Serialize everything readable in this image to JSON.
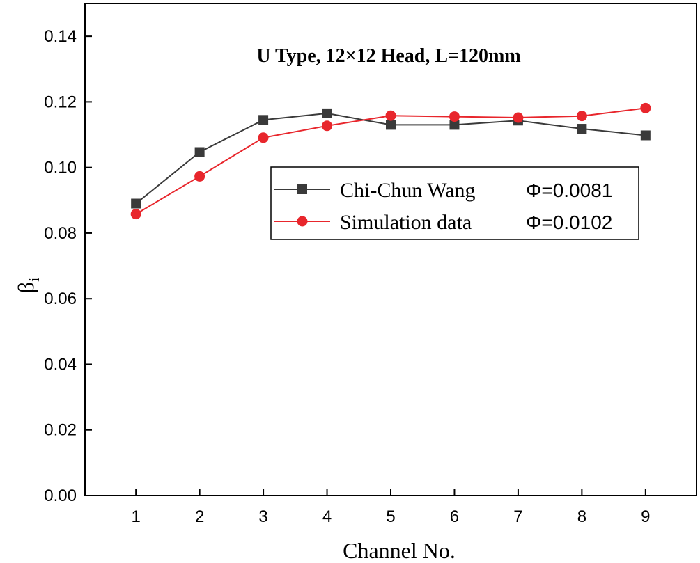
{
  "chart_data": {
    "type": "line",
    "title": "U Type, 12×12 Head, L=120mm",
    "xlabel": "Channel No.",
    "ylabel": "β",
    "ylabel_subscript": "i",
    "x": [
      1,
      2,
      3,
      4,
      5,
      6,
      7,
      8,
      9
    ],
    "xlim": [
      0.2,
      9.8
    ],
    "ylim": [
      0,
      0.15
    ],
    "x_ticks": [
      "1",
      "2",
      "3",
      "4",
      "5",
      "6",
      "7",
      "8",
      "9"
    ],
    "y_ticks": [
      "0.00",
      "0.02",
      "0.04",
      "0.06",
      "0.08",
      "0.10",
      "0.12",
      "0.14"
    ],
    "y_tick_values": [
      0,
      0.02,
      0.04,
      0.06,
      0.08,
      0.1,
      0.12,
      0.14
    ],
    "legend_position": "center-right",
    "series": [
      {
        "name": "Chi-Chun Wang",
        "phi": "Φ=0.0081",
        "marker": "square",
        "color": "#3a3a3a",
        "values": [
          0.089,
          0.1047,
          0.1145,
          0.1165,
          0.113,
          0.113,
          0.1143,
          0.1118,
          0.1098
        ]
      },
      {
        "name": "Simulation data",
        "phi": "Φ=0.0102",
        "marker": "circle",
        "color": "#e8262c",
        "values": [
          0.0858,
          0.0973,
          0.1091,
          0.1127,
          0.1158,
          0.1155,
          0.1152,
          0.1157,
          0.1181
        ]
      }
    ]
  }
}
